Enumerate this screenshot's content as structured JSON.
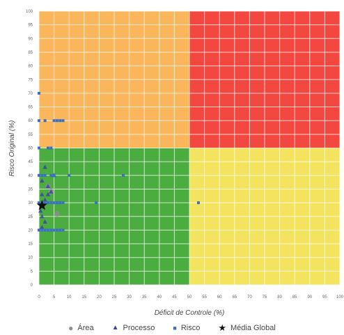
{
  "chart_data": {
    "type": "scatter",
    "xlabel": "Déficit de Controle (%)",
    "ylabel": "Risco Original (%)",
    "xlim": [
      0,
      100
    ],
    "ylim": [
      0,
      100
    ],
    "x_ticks": [
      "0",
      "5",
      "10",
      "15",
      "20",
      "25",
      "30",
      "35",
      "40",
      "45",
      "50",
      "55",
      "60",
      "65",
      "70",
      "75",
      "80",
      "85",
      "90",
      "95",
      "100"
    ],
    "y_ticks": [
      "0",
      "5",
      "10",
      "15",
      "20",
      "25",
      "30",
      "35",
      "40",
      "45",
      "50",
      "55",
      "60",
      "65",
      "70",
      "75",
      "80",
      "85",
      "90",
      "95",
      "100"
    ],
    "grid": true,
    "legend_placement": "bottom",
    "zones": [
      {
        "x": [
          0,
          50
        ],
        "y": [
          50,
          100
        ],
        "color": "#f9b65a"
      },
      {
        "x": [
          50,
          100
        ],
        "y": [
          50,
          100
        ],
        "color": "#f24840"
      },
      {
        "x": [
          0,
          50
        ],
        "y": [
          0,
          50
        ],
        "color": "#4bac3f"
      },
      {
        "x": [
          50,
          100
        ],
        "y": [
          0,
          50
        ],
        "color": "#f4e35e"
      }
    ],
    "series": [
      {
        "name": "Área",
        "marker": "circle",
        "color": "#8c8c8c",
        "points": [
          [
            4,
            34
          ],
          [
            3,
            36
          ],
          [
            6,
            26
          ]
        ]
      },
      {
        "name": "Processo",
        "marker": "triangle",
        "color": "#3b3fa6",
        "points": [
          [
            2,
            43
          ],
          [
            1,
            38
          ],
          [
            3,
            36
          ],
          [
            4,
            34
          ],
          [
            1,
            33
          ],
          [
            2,
            31
          ],
          [
            1,
            29
          ],
          [
            0.5,
            27
          ],
          [
            1,
            25
          ],
          [
            2,
            23
          ],
          [
            1,
            21
          ],
          [
            5,
            40
          ],
          [
            3,
            33
          ]
        ]
      },
      {
        "name": "Risco",
        "marker": "square",
        "color": "#3a6fc6",
        "points": [
          [
            0,
            70
          ],
          [
            0,
            60
          ],
          [
            2,
            60
          ],
          [
            5,
            60
          ],
          [
            6,
            60
          ],
          [
            7,
            60
          ],
          [
            8,
            60
          ],
          [
            0,
            50
          ],
          [
            3,
            50
          ],
          [
            4,
            50
          ],
          [
            0,
            40
          ],
          [
            1,
            40
          ],
          [
            2,
            40
          ],
          [
            4,
            40
          ],
          [
            5,
            40
          ],
          [
            10,
            40
          ],
          [
            28,
            40
          ],
          [
            0,
            30
          ],
          [
            1,
            30
          ],
          [
            2,
            30
          ],
          [
            3,
            30
          ],
          [
            4,
            30
          ],
          [
            5,
            30
          ],
          [
            6,
            30
          ],
          [
            7,
            30
          ],
          [
            8,
            30
          ],
          [
            19,
            30
          ],
          [
            53,
            30
          ],
          [
            0,
            20
          ],
          [
            1,
            20
          ],
          [
            2,
            20
          ],
          [
            3,
            20
          ],
          [
            4,
            20
          ],
          [
            5,
            20
          ],
          [
            6,
            20
          ],
          [
            7,
            20
          ],
          [
            8,
            20
          ]
        ]
      },
      {
        "name": "Média Global",
        "marker": "star",
        "color": "#111111",
        "points": [
          [
            1,
            29
          ]
        ]
      }
    ]
  }
}
